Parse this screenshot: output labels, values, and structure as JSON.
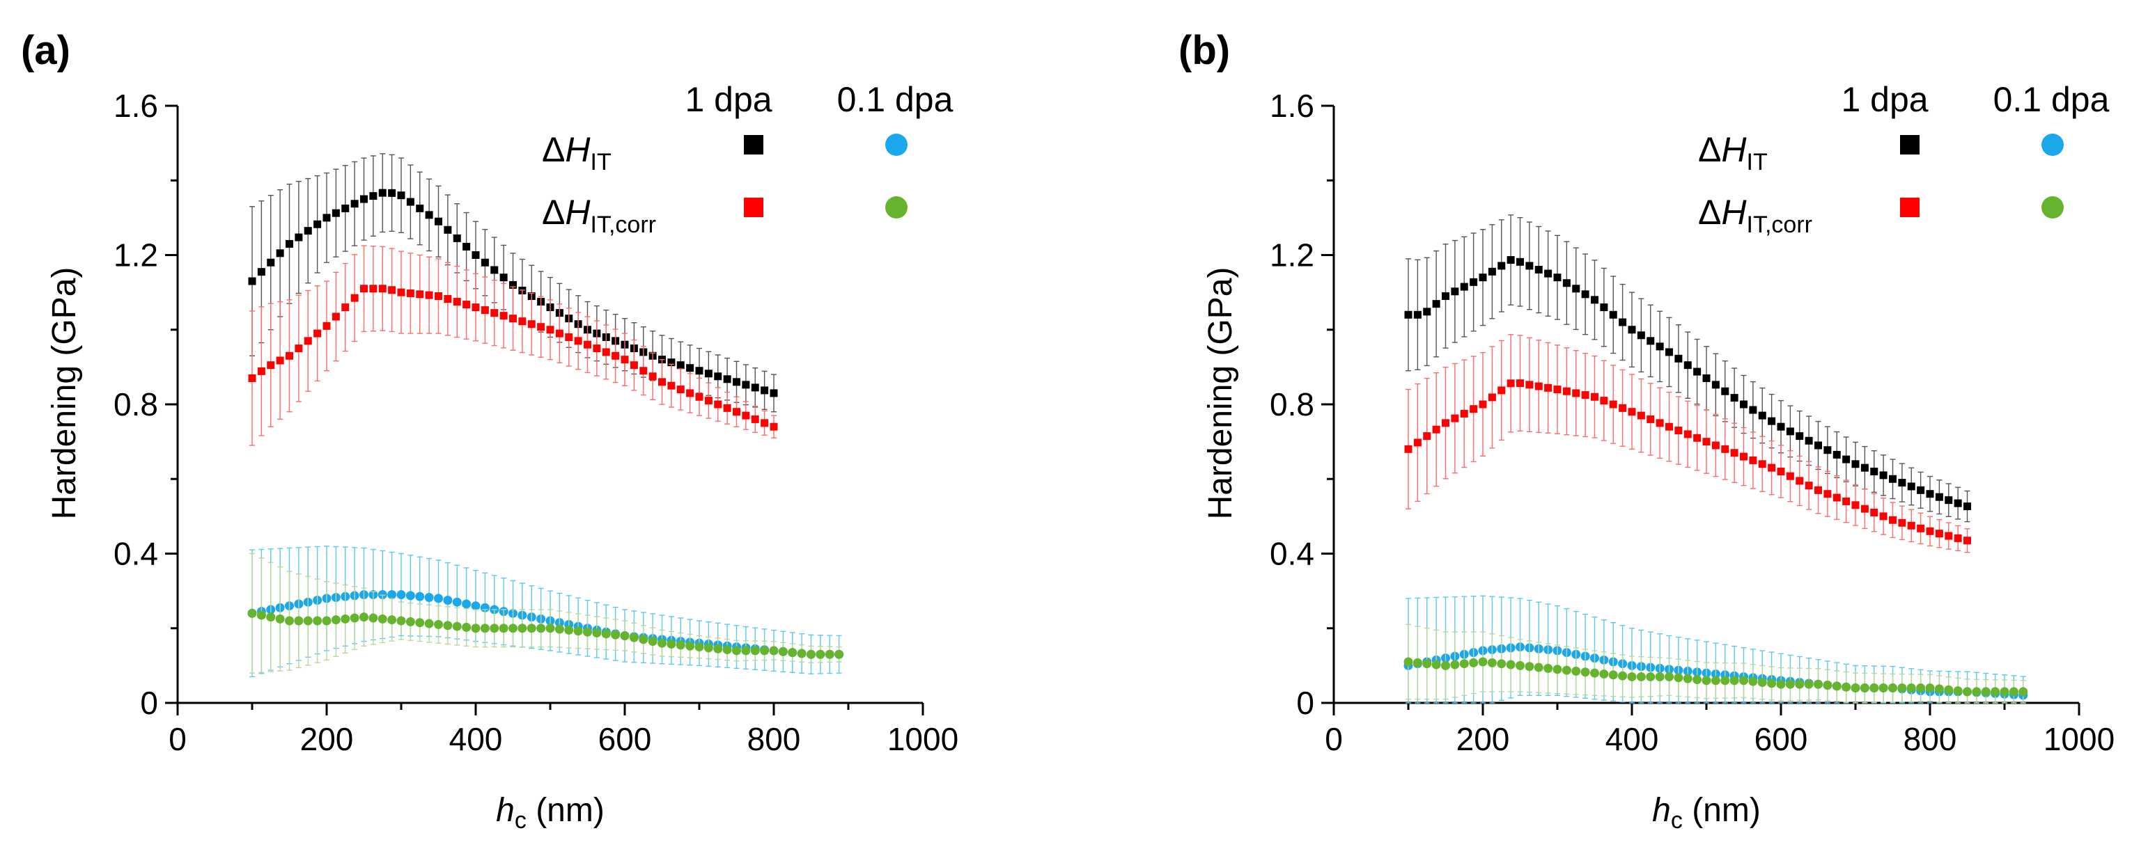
{
  "figure": {
    "panels": [
      "(a)",
      "(b)"
    ],
    "legend": {
      "columns": [
        "1 dpa",
        "0.1 dpa"
      ],
      "rows": [
        {
          "symbol": "ΔH",
          "subscript": "IT"
        },
        {
          "symbol": "ΔH",
          "subscript": "IT,corr"
        }
      ]
    }
  },
  "chart_data": [
    {
      "panel_label": "(a)",
      "type": "scatter",
      "xlabel_main": "h",
      "xlabel_sub": "c",
      "xlabel_unit": " (nm)",
      "ylabel": "Hardening (GPa)",
      "xlim": [
        0,
        1000
      ],
      "ylim": [
        0,
        1.6
      ],
      "x_ticks": [
        0,
        200,
        400,
        600,
        800,
        1000
      ],
      "y_ticks": [
        0,
        0.4,
        0.8,
        1.2,
        1.6
      ],
      "x_tick_labels": [
        "0",
        "200",
        "400",
        "600",
        "800",
        "1000"
      ],
      "y_tick_labels": [
        "0",
        "0.4",
        "0.8",
        "1.2",
        "1.6"
      ],
      "series": [
        {
          "name": "ΔH_IT 1 dpa",
          "color": "#000000",
          "marker": "square",
          "color_err": "#555555",
          "points": [
            [
              100,
              1.13
            ],
            [
              150,
              1.23
            ],
            [
              200,
              1.3
            ],
            [
              250,
              1.35
            ],
            [
              280,
              1.37
            ],
            [
              300,
              1.36
            ],
            [
              350,
              1.29
            ],
            [
              400,
              1.2
            ],
            [
              450,
              1.12
            ],
            [
              500,
              1.06
            ],
            [
              550,
              1.0
            ],
            [
              600,
              0.96
            ],
            [
              650,
              0.92
            ],
            [
              700,
              0.89
            ],
            [
              750,
              0.86
            ],
            [
              800,
              0.83
            ]
          ],
          "error": [
            [
              100,
              0.2
            ],
            [
              200,
              0.12
            ],
            [
              300,
              0.1
            ],
            [
              400,
              0.09
            ],
            [
              600,
              0.07
            ],
            [
              800,
              0.05
            ]
          ]
        },
        {
          "name": "ΔH_IT,corr 1 dpa",
          "color": "#ff0000",
          "marker": "square",
          "color_err": "#ff6a6a",
          "points": [
            [
              100,
              0.87
            ],
            [
              120,
              0.9
            ],
            [
              150,
              0.93
            ],
            [
              200,
              1.01
            ],
            [
              250,
              1.11
            ],
            [
              280,
              1.11
            ],
            [
              300,
              1.1
            ],
            [
              350,
              1.09
            ],
            [
              400,
              1.06
            ],
            [
              450,
              1.03
            ],
            [
              500,
              1.0
            ],
            [
              550,
              0.96
            ],
            [
              600,
              0.92
            ],
            [
              650,
              0.86
            ],
            [
              700,
              0.82
            ],
            [
              750,
              0.78
            ],
            [
              800,
              0.74
            ]
          ],
          "error": [
            [
              100,
              0.18
            ],
            [
              200,
              0.12
            ],
            [
              300,
              0.11
            ],
            [
              400,
              0.09
            ],
            [
              600,
              0.07
            ],
            [
              800,
              0.03
            ]
          ]
        },
        {
          "name": "ΔH_IT 0.1 dpa",
          "color": "#1aa7ec",
          "marker": "circle",
          "color_err": "#5ec8f0",
          "points": [
            [
              100,
              0.24
            ],
            [
              150,
              0.26
            ],
            [
              200,
              0.28
            ],
            [
              250,
              0.29
            ],
            [
              300,
              0.29
            ],
            [
              350,
              0.28
            ],
            [
              400,
              0.26
            ],
            [
              450,
              0.24
            ],
            [
              500,
              0.22
            ],
            [
              550,
              0.2
            ],
            [
              600,
              0.18
            ],
            [
              650,
              0.17
            ],
            [
              700,
              0.16
            ],
            [
              750,
              0.15
            ],
            [
              800,
              0.14
            ],
            [
              850,
              0.13
            ],
            [
              890,
              0.13
            ]
          ],
          "error": [
            [
              100,
              0.17
            ],
            [
              300,
              0.11
            ],
            [
              500,
              0.08
            ],
            [
              700,
              0.06
            ],
            [
              890,
              0.05
            ]
          ]
        },
        {
          "name": "ΔH_IT,corr 0.1 dpa",
          "color": "#66b32e",
          "marker": "circle",
          "color_err": "#b7d89a",
          "points": [
            [
              100,
              0.24
            ],
            [
              150,
              0.22
            ],
            [
              200,
              0.22
            ],
            [
              250,
              0.23
            ],
            [
              300,
              0.22
            ],
            [
              350,
              0.21
            ],
            [
              400,
              0.2
            ],
            [
              450,
              0.2
            ],
            [
              500,
              0.2
            ],
            [
              550,
              0.19
            ],
            [
              600,
              0.18
            ],
            [
              650,
              0.16
            ],
            [
              700,
              0.15
            ],
            [
              750,
              0.14
            ],
            [
              800,
              0.14
            ],
            [
              850,
              0.13
            ],
            [
              890,
              0.13
            ]
          ],
          "error": [
            [
              100,
              0.16
            ],
            [
              300,
              0.05
            ],
            [
              500,
              0.05
            ],
            [
              700,
              0.03
            ],
            [
              890,
              0.02
            ]
          ]
        }
      ]
    },
    {
      "panel_label": "(b)",
      "type": "scatter",
      "xlabel_main": "h",
      "xlabel_sub": "c",
      "xlabel_unit": " (nm)",
      "ylabel": "Hardening (GPa)",
      "xlim": [
        0,
        1000
      ],
      "ylim": [
        0,
        1.6
      ],
      "x_ticks": [
        0,
        200,
        400,
        600,
        800,
        1000
      ],
      "y_ticks": [
        0,
        0.4,
        0.8,
        1.2,
        1.6
      ],
      "x_tick_labels": [
        "0",
        "200",
        "400",
        "600",
        "800",
        "1000"
      ],
      "y_tick_labels": [
        "0",
        "0.4",
        "0.8",
        "1.2",
        "1.6"
      ],
      "series": [
        {
          "name": "ΔH_IT 1 dpa",
          "color": "#000000",
          "marker": "square",
          "color_err": "#555555",
          "points": [
            [
              100,
              1.04
            ],
            [
              120,
              1.04
            ],
            [
              150,
              1.09
            ],
            [
              200,
              1.14
            ],
            [
              240,
              1.19
            ],
            [
              300,
              1.14
            ],
            [
              350,
              1.08
            ],
            [
              400,
              1.0
            ],
            [
              450,
              0.94
            ],
            [
              500,
              0.87
            ],
            [
              550,
              0.8
            ],
            [
              600,
              0.74
            ],
            [
              650,
              0.69
            ],
            [
              700,
              0.64
            ],
            [
              750,
              0.6
            ],
            [
              800,
              0.56
            ],
            [
              860,
              0.52
            ]
          ],
          "error": [
            [
              100,
              0.15
            ],
            [
              240,
              0.12
            ],
            [
              400,
              0.1
            ],
            [
              600,
              0.07
            ],
            [
              860,
              0.04
            ]
          ]
        },
        {
          "name": "ΔH_IT,corr 1 dpa",
          "color": "#ff0000",
          "marker": "square",
          "color_err": "#ff6a6a",
          "points": [
            [
              100,
              0.68
            ],
            [
              150,
              0.75
            ],
            [
              200,
              0.8
            ],
            [
              240,
              0.86
            ],
            [
              300,
              0.84
            ],
            [
              350,
              0.82
            ],
            [
              400,
              0.78
            ],
            [
              450,
              0.74
            ],
            [
              500,
              0.7
            ],
            [
              550,
              0.66
            ],
            [
              600,
              0.62
            ],
            [
              650,
              0.57
            ],
            [
              700,
              0.53
            ],
            [
              750,
              0.49
            ],
            [
              800,
              0.46
            ],
            [
              860,
              0.43
            ]
          ],
          "error": [
            [
              100,
              0.16
            ],
            [
              240,
              0.13
            ],
            [
              400,
              0.1
            ],
            [
              600,
              0.07
            ],
            [
              860,
              0.03
            ]
          ]
        },
        {
          "name": "ΔH_IT 0.1 dpa",
          "color": "#1aa7ec",
          "marker": "circle",
          "color_err": "#5ec8f0",
          "points": [
            [
              100,
              0.1
            ],
            [
              150,
              0.12
            ],
            [
              200,
              0.14
            ],
            [
              250,
              0.15
            ],
            [
              300,
              0.14
            ],
            [
              350,
              0.12
            ],
            [
              400,
              0.1
            ],
            [
              450,
              0.09
            ],
            [
              500,
              0.08
            ],
            [
              550,
              0.07
            ],
            [
              600,
              0.06
            ],
            [
              650,
              0.05
            ],
            [
              700,
              0.04
            ],
            [
              750,
              0.04
            ],
            [
              800,
              0.03
            ],
            [
              850,
              0.03
            ],
            [
              930,
              0.02
            ]
          ],
          "error": [
            [
              100,
              0.18
            ],
            [
              250,
              0.13
            ],
            [
              450,
              0.09
            ],
            [
              700,
              0.06
            ],
            [
              930,
              0.05
            ]
          ]
        },
        {
          "name": "ΔH_IT,corr 0.1 dpa",
          "color": "#66b32e",
          "marker": "circle",
          "color_err": "#b7d89a",
          "points": [
            [
              100,
              0.11
            ],
            [
              150,
              0.1
            ],
            [
              200,
              0.11
            ],
            [
              250,
              0.1
            ],
            [
              300,
              0.09
            ],
            [
              350,
              0.08
            ],
            [
              400,
              0.07
            ],
            [
              450,
              0.07
            ],
            [
              500,
              0.06
            ],
            [
              550,
              0.06
            ],
            [
              600,
              0.05
            ],
            [
              650,
              0.05
            ],
            [
              700,
              0.04
            ],
            [
              750,
              0.04
            ],
            [
              800,
              0.04
            ],
            [
              850,
              0.03
            ],
            [
              930,
              0.03
            ]
          ],
          "error": [
            [
              100,
              0.1
            ],
            [
              250,
              0.07
            ],
            [
              450,
              0.05
            ],
            [
              700,
              0.04
            ],
            [
              930,
              0.03
            ]
          ]
        }
      ]
    }
  ]
}
